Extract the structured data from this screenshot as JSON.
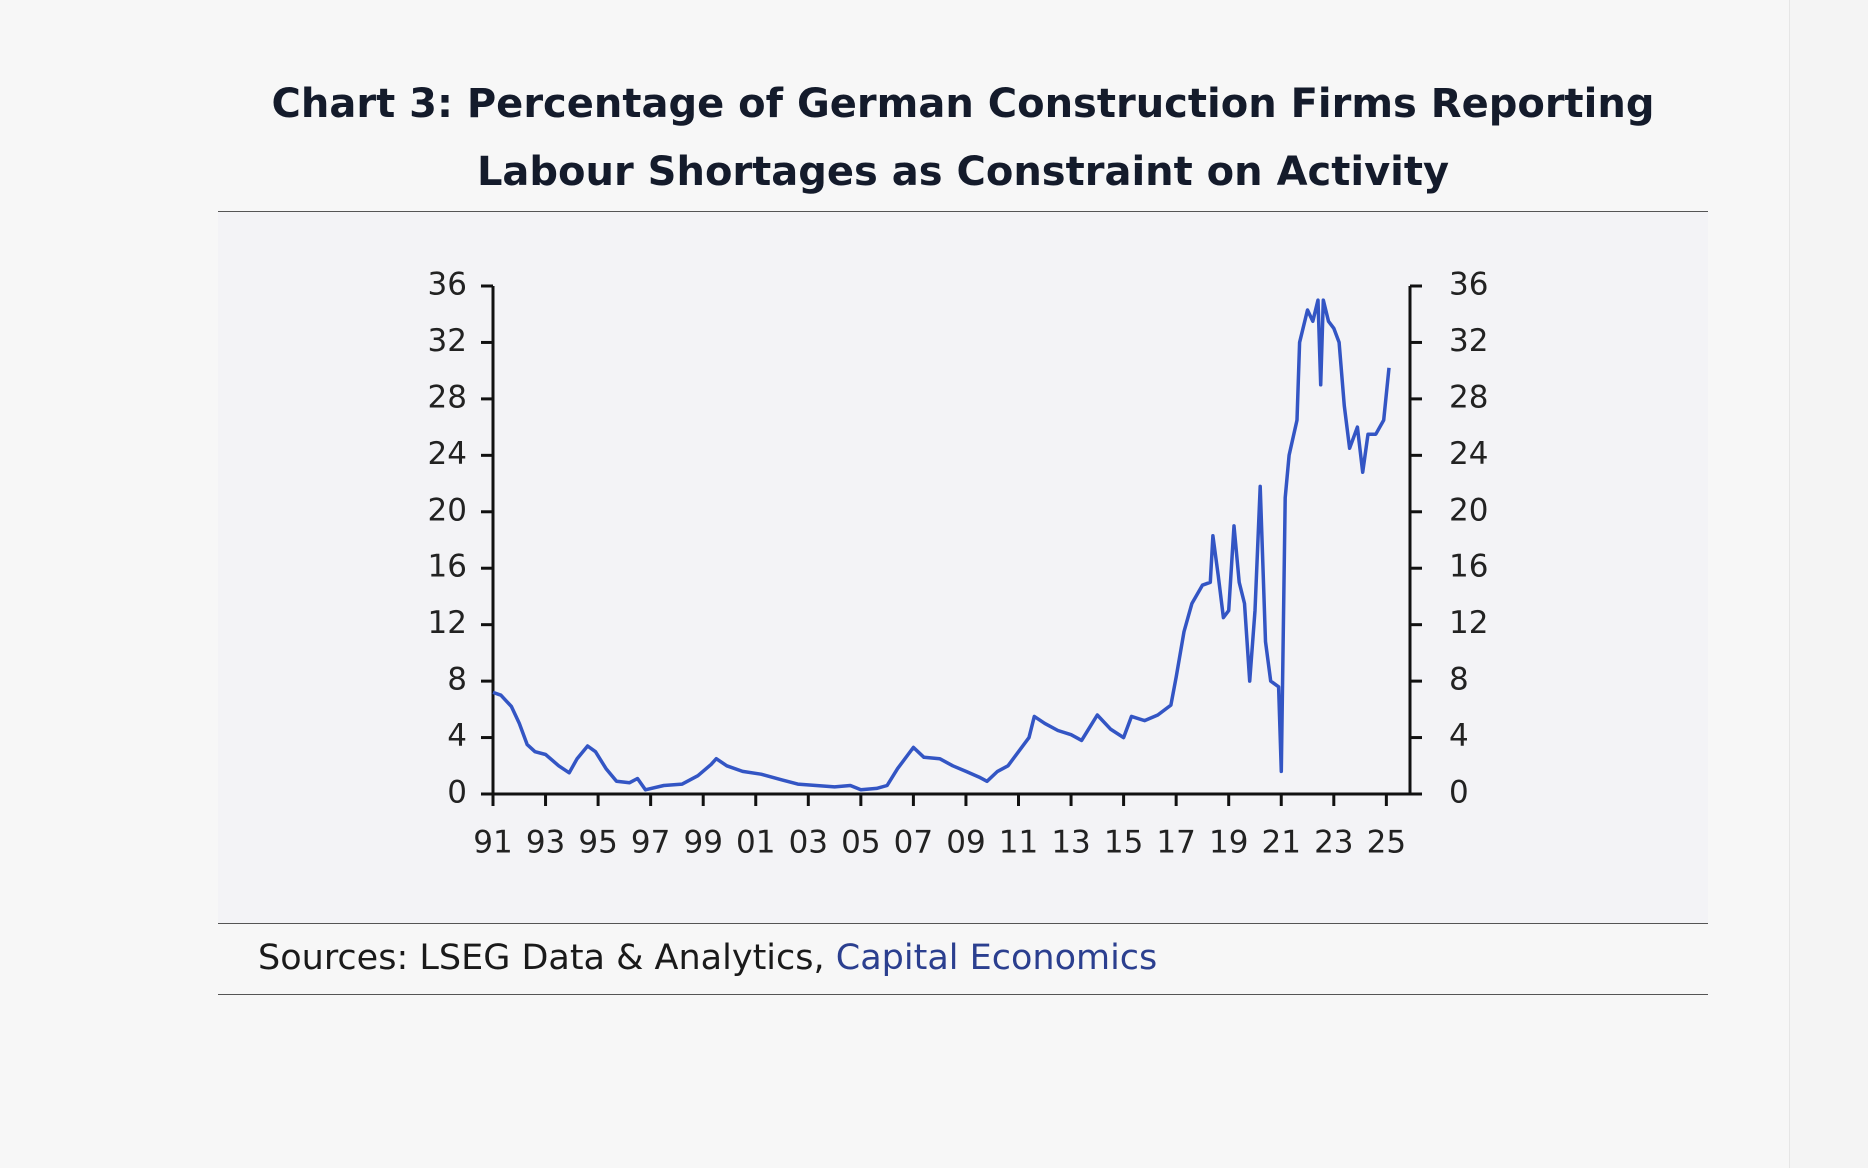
{
  "chart_data": {
    "type": "line",
    "title": "Chart 3: Percentage of German Construction Firms Reporting Labour Shortages as Constraint on Activity",
    "source_prefix": "Sources: LSEG Data & Analytics,",
    "source_link": "Capital Economics",
    "xlim": [
      1991,
      2025.9
    ],
    "xticks": [
      {
        "value": 1991,
        "label": "91"
      },
      {
        "value": 1993,
        "label": "93"
      },
      {
        "value": 1995,
        "label": "95"
      },
      {
        "value": 1997,
        "label": "97"
      },
      {
        "value": 1999,
        "label": "99"
      },
      {
        "value": 2001,
        "label": "01"
      },
      {
        "value": 2003,
        "label": "03"
      },
      {
        "value": 2005,
        "label": "05"
      },
      {
        "value": 2007,
        "label": "07"
      },
      {
        "value": 2009,
        "label": "09"
      },
      {
        "value": 2011,
        "label": "11"
      },
      {
        "value": 2013,
        "label": "13"
      },
      {
        "value": 2015,
        "label": "15"
      },
      {
        "value": 2017,
        "label": "17"
      },
      {
        "value": 2019,
        "label": "19"
      },
      {
        "value": 2021,
        "label": "21"
      },
      {
        "value": 2023,
        "label": "23"
      },
      {
        "value": 2025,
        "label": "25"
      }
    ],
    "ylim": [
      0,
      36
    ],
    "yticks": [
      0,
      4,
      8,
      12,
      16,
      20,
      24,
      28,
      32,
      36
    ],
    "y2lim": [
      0,
      36
    ],
    "y2ticks": [
      0,
      4,
      8,
      12,
      16,
      20,
      24,
      28,
      32,
      36
    ],
    "grid": false,
    "series": [
      {
        "color": "#3355c4",
        "x": [
          1991.0,
          1991.3,
          1991.7,
          1992.0,
          1992.3,
          1992.6,
          1993.0,
          1993.5,
          1993.9,
          1994.2,
          1994.6,
          1994.9,
          1995.3,
          1995.7,
          1996.2,
          1996.5,
          1996.8,
          1997.5,
          1998.2,
          1998.8,
          1999.3,
          1999.5,
          1999.9,
          2000.5,
          2001.2,
          2002.0,
          2002.6,
          2003.3,
          2004.0,
          2004.6,
          2005.0,
          2005.6,
          2006.0,
          2006.4,
          2006.8,
          2007.0,
          2007.4,
          2008.0,
          2008.5,
          2009.0,
          2009.5,
          2009.8,
          2010.2,
          2010.6,
          2011.0,
          2011.4,
          2011.6,
          2012.0,
          2012.5,
          2013.0,
          2013.4,
          2013.8,
          2014.0,
          2014.5,
          2015.0,
          2015.3,
          2015.8,
          2016.3,
          2016.8,
          2017.0,
          2017.3,
          2017.6,
          2018.0,
          2018.3,
          2018.4,
          2018.6,
          2018.8,
          2019.0,
          2019.2,
          2019.4,
          2019.6,
          2019.8,
          2020.0,
          2020.2,
          2020.4,
          2020.6,
          2020.9,
          2021.0,
          2021.15,
          2021.3,
          2021.6,
          2021.7,
          2022.0,
          2022.2,
          2022.4,
          2022.5,
          2022.6,
          2022.8,
          2023.0,
          2023.2,
          2023.4,
          2023.6,
          2023.9,
          2024.1,
          2024.3,
          2024.6,
          2024.9,
          2025.1
        ],
        "values": [
          7.2,
          7.0,
          6.2,
          5.0,
          3.5,
          3.0,
          2.8,
          2.0,
          1.5,
          2.5,
          3.4,
          3.0,
          1.8,
          0.9,
          0.8,
          1.1,
          0.3,
          0.6,
          0.7,
          1.3,
          2.1,
          2.5,
          2.0,
          1.6,
          1.4,
          1.0,
          0.7,
          0.6,
          0.5,
          0.6,
          0.3,
          0.4,
          0.6,
          1.8,
          2.8,
          3.3,
          2.6,
          2.5,
          2.0,
          1.6,
          1.2,
          0.9,
          1.6,
          2.0,
          3.0,
          4.0,
          5.5,
          5.0,
          4.5,
          4.2,
          3.8,
          5.0,
          5.6,
          4.6,
          4.0,
          5.5,
          5.2,
          5.6,
          6.3,
          8.3,
          11.5,
          13.5,
          14.8,
          15.0,
          18.3,
          15.5,
          12.5,
          13.0,
          19.0,
          15.0,
          13.5,
          8.0,
          13.0,
          21.8,
          10.8,
          8.0,
          7.6,
          1.6,
          21.0,
          24.0,
          26.5,
          32.0,
          34.3,
          33.5,
          35.0,
          29.0,
          35.0,
          33.5,
          33.0,
          32.0,
          27.5,
          24.5,
          26.0,
          22.8,
          25.5,
          25.5,
          26.5,
          30.2
        ]
      }
    ]
  }
}
